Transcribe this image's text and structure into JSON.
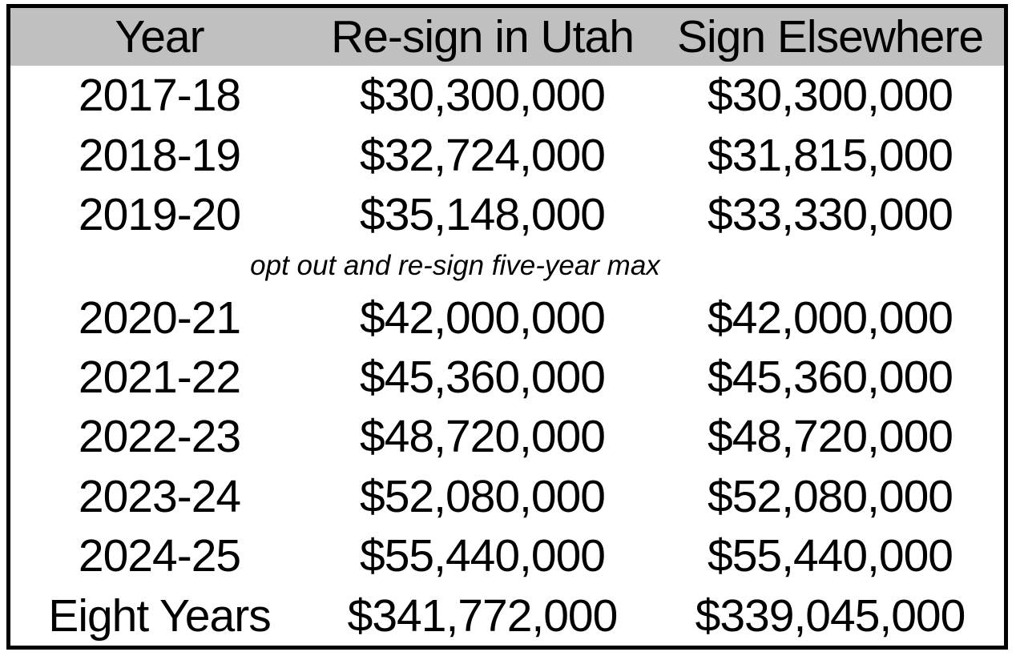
{
  "colors": {
    "header_bg": "#c0c0c0",
    "border": "#000000",
    "text": "#000000",
    "background": "#ffffff"
  },
  "chart_data": {
    "type": "table",
    "columns": [
      "Year",
      "Re-sign in Utah",
      "Sign Elsewhere"
    ],
    "rows": [
      {
        "type": "data",
        "year": "2017-18",
        "resign_utah": "$30,300,000",
        "sign_elsewhere": "$30,300,000"
      },
      {
        "type": "data",
        "year": "2018-19",
        "resign_utah": "$32,724,000",
        "sign_elsewhere": "$31,815,000"
      },
      {
        "type": "data",
        "year": "2019-20",
        "resign_utah": "$35,148,000",
        "sign_elsewhere": "$33,330,000"
      },
      {
        "type": "note",
        "text": "opt out and re-sign five-year max"
      },
      {
        "type": "data",
        "year": "2020-21",
        "resign_utah": "$42,000,000",
        "sign_elsewhere": "$42,000,000"
      },
      {
        "type": "data",
        "year": "2021-22",
        "resign_utah": "$45,360,000",
        "sign_elsewhere": "$45,360,000"
      },
      {
        "type": "data",
        "year": "2022-23",
        "resign_utah": "$48,720,000",
        "sign_elsewhere": "$48,720,000"
      },
      {
        "type": "data",
        "year": "2023-24",
        "resign_utah": "$52,080,000",
        "sign_elsewhere": "$52,080,000"
      },
      {
        "type": "data",
        "year": "2024-25",
        "resign_utah": "$55,440,000",
        "sign_elsewhere": "$55,440,000"
      },
      {
        "type": "data",
        "year": "Eight Years",
        "resign_utah": "$341,772,000",
        "sign_elsewhere": "$339,045,000"
      }
    ],
    "note": "opt out and re-sign five-year max",
    "legend_position": "none",
    "grid": false
  }
}
